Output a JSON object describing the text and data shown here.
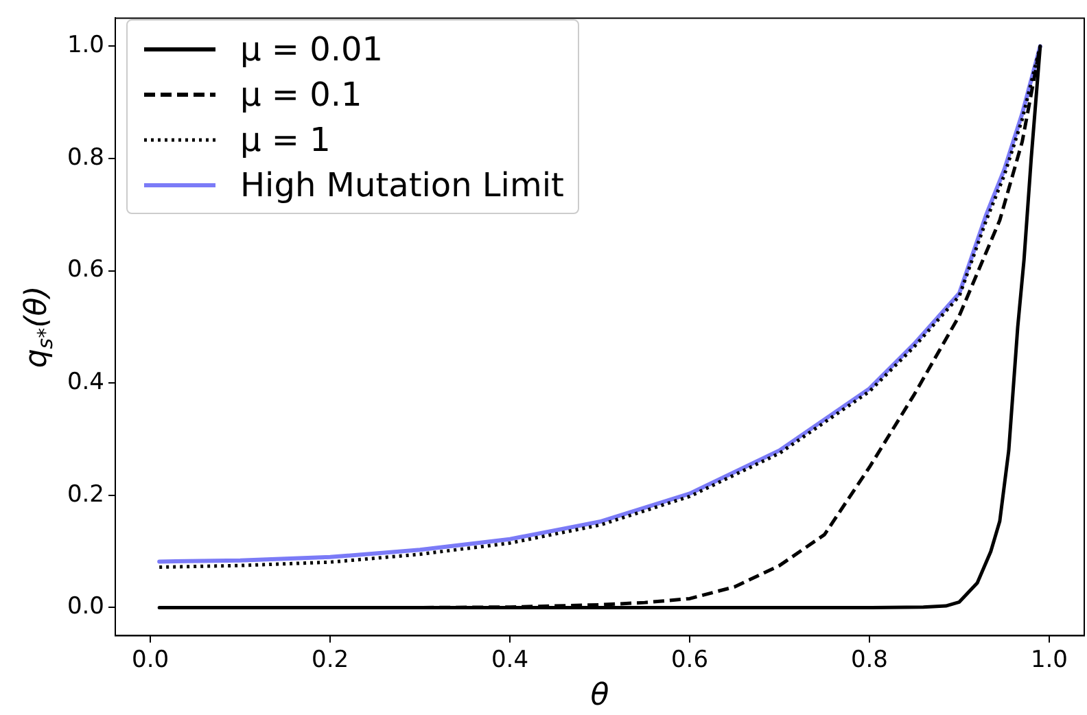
{
  "chart_data": {
    "type": "line",
    "xlabel": "θ",
    "ylabel": "q$_{s*}$(θ)",
    "xlim": [
      -0.039,
      1.039
    ],
    "ylim": [
      -0.05,
      1.05
    ],
    "xticks": [
      {
        "value": 0,
        "label": "0.0"
      },
      {
        "value": 0.2,
        "label": "0.2"
      },
      {
        "value": 0.4,
        "label": "0.4"
      },
      {
        "value": 0.6,
        "label": "0.6"
      },
      {
        "value": 0.8,
        "label": "0.8"
      },
      {
        "value": 1,
        "label": "1.0"
      }
    ],
    "yticks": [
      {
        "value": 0,
        "label": "0.0"
      },
      {
        "value": 0.2,
        "label": "0.2"
      },
      {
        "value": 0.4,
        "label": "0.4"
      },
      {
        "value": 0.6,
        "label": "0.6"
      },
      {
        "value": 0.8,
        "label": "0.8"
      },
      {
        "value": 1,
        "label": "1.0"
      }
    ],
    "grid": false,
    "legend": "top left",
    "marker": "none",
    "series": [
      {
        "name": "μ = 0.01",
        "color": "#000000",
        "line_style": "solid",
        "x": [
          0.01,
          0.5,
          0.8,
          0.86,
          0.885,
          0.9,
          0.92,
          0.935,
          0.945,
          0.955,
          0.96,
          0.965,
          0.972,
          0.98,
          0.99
        ],
        "values": [
          0,
          0,
          0,
          0.001,
          0.003,
          0.01,
          0.044,
          0.1,
          0.154,
          0.28,
          0.39,
          0.5,
          0.62,
          0.8,
          1.0
        ]
      },
      {
        "name": "μ = 0.1",
        "color": "#000000",
        "line_style": "dashed",
        "x": [
          0.01,
          0.3,
          0.4,
          0.5,
          0.55,
          0.6,
          0.65,
          0.7,
          0.75,
          0.8,
          0.85,
          0.9,
          0.945,
          0.97,
          0.99
        ],
        "values": [
          0,
          0,
          0.001,
          0.005,
          0.009,
          0.016,
          0.037,
          0.075,
          0.13,
          0.25,
          0.38,
          0.52,
          0.69,
          0.83,
          1.0
        ]
      },
      {
        "name": "μ = 1",
        "color": "#000000",
        "line_style": "dotted",
        "x": [
          0.01,
          0.1,
          0.2,
          0.3,
          0.4,
          0.5,
          0.6,
          0.7,
          0.8,
          0.85,
          0.9,
          0.93,
          0.95,
          0.97,
          0.99
        ],
        "values": [
          0.072,
          0.075,
          0.081,
          0.095,
          0.115,
          0.147,
          0.198,
          0.275,
          0.385,
          0.465,
          0.555,
          0.69,
          0.77,
          0.87,
          1.0
        ]
      },
      {
        "name": "High Mutation Limit",
        "color": "#7b7bf7",
        "line_style": "solid",
        "x": [
          0.01,
          0.1,
          0.2,
          0.3,
          0.4,
          0.5,
          0.6,
          0.7,
          0.8,
          0.85,
          0.9,
          0.93,
          0.95,
          0.97,
          0.99
        ],
        "values": [
          0.082,
          0.084,
          0.09,
          0.103,
          0.122,
          0.153,
          0.203,
          0.28,
          0.39,
          0.47,
          0.56,
          0.7,
          0.78,
          0.88,
          1.0
        ]
      }
    ]
  }
}
